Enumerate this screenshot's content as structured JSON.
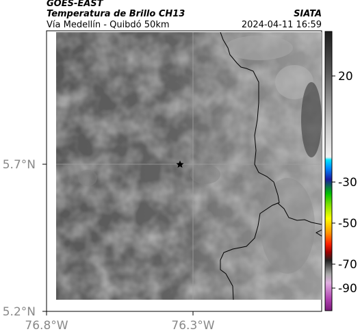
{
  "header": {
    "satellite": "GOES-EAST",
    "product": "Temperatura de Brillo CH13",
    "region": "Vía Medellín - Quibdó 50km",
    "brand": "SIATA",
    "datetime": "2024-04-11 16:59"
  },
  "map": {
    "lat_ticks": [
      {
        "label": "5.7°N"
      },
      {
        "label": "5.2°N"
      }
    ],
    "lon_ticks": [
      {
        "label": "76.8°W"
      },
      {
        "label": "76.3°W"
      }
    ],
    "marker": "star-marker"
  },
  "colorbar": {
    "ticks": [
      {
        "label": "20",
        "value": 20
      },
      {
        "label": "-30",
        "value": -30
      },
      {
        "label": "-50",
        "value": -50
      },
      {
        "label": "-70",
        "value": -70
      },
      {
        "label": "-90",
        "value": -90
      }
    ]
  }
}
